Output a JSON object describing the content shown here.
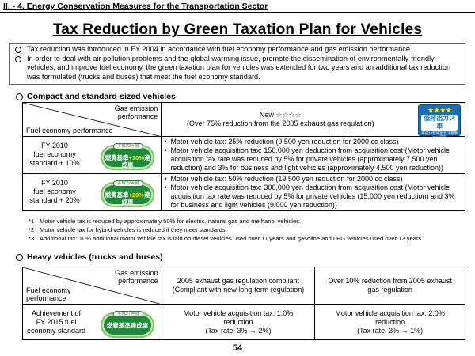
{
  "section_header": "II. - 4. Energy Conservation Measures for the Transportation Sector",
  "title": "Tax Reduction by Green Taxation Plan for Vehicles",
  "intro": [
    "Tax reduction was introduced in FY 2004 in accordance with fuel economy performance and gas emission performance.",
    "In order to deal with air pollution problems and the global warming issue, promote the dissemination of environmentally-friendly vehicles, and improve fuel economy, the green taxation plan for vehicles was extended for two years and an additional tax reduction was formulated (trucks and buses) that meet the fuel economy standard."
  ],
  "compact": {
    "heading": "Compact and standard-sized vehicles",
    "corner_top": "Gas emission\nperformance",
    "corner_bottom": "Fuel economy performance",
    "column_header": "New ☆☆☆☆\n(Over 75% reduction from the 2005 exhaust gas regulation)",
    "stars_badge": {
      "stars": "★★★★",
      "kanji": "低排出ガス車",
      "small": "平成17年排出ガス基準75%低減"
    },
    "rows": [
      {
        "label": "FY 2010\nfuel economy\nstandard + 10%",
        "badge_top": "平成22年度",
        "badge_text": "燃費基準",
        "badge_pct": "+10%",
        "badge_suffix": "達成車",
        "bullets": [
          "Motor vehicle tax: 25% reduction (9,500 yen reduction for 2000 cc class)",
          "Motor vehicle acquisition tax: 150,000 yen deduction from acquisition cost (Motor vehicle acquisition tax rate was reduced by 5% for private vehicles (approximately 7,500 yen reduction) and 3% for business and light vehicles (approximately 4,500 yen reduction))"
        ]
      },
      {
        "label": "FY 2010\nfuel economy\nstandard + 20%",
        "badge_top": "平成22年度",
        "badge_text": "燃費基準",
        "badge_pct": "+20%",
        "badge_suffix": "達成車",
        "bullets": [
          "Motor vehicle tax: 50% reduction (19,500 yen reduction for 2000 cc class)",
          "Motor vehicle acquisition tax: 300,000 yen deduction from acquisition cost (Motor vehicle acquisition tax rate was reduced by 5% for private vehicles (15,000 yen reduction) and 3% for business and light vehicles (9,000 yen reduction))"
        ]
      }
    ]
  },
  "notes": [
    {
      "num": "*1",
      "text": "Motor vehicle tax is reduced by approximately 50% for electric, natural gas and methanol vehicles."
    },
    {
      "num": "*2",
      "text": "Motor vehicle tax for hybrid vehicles is reduced if they meet standards."
    },
    {
      "num": "*3",
      "text": "Additional tax: 10% additional motor vehicle tax is laid on diesel vehicles used over 11 years and gasoline and LPG vehicles used over 13 years."
    }
  ],
  "heavy": {
    "heading": "Heavy vehicles (trucks and buses)",
    "corner_top": "Gas emission\nperformance",
    "corner_bottom": "Fuel economy\nperformance",
    "col1_header": "2005 exhaust gas regulation compliant\n(Compliant with new long-term regulation)",
    "col2_header": "Over 10% reduction from 2005 exhaust\ngas regulation",
    "row_label": "Achievement of\nFY 2015 fuel\neconomy standard",
    "badge_top": "平成27年度",
    "badge_text": "燃費基準達成車",
    "col1_value": "Motor vehicle acquisition tax: 1.0%\nreduction\n(Tax rate: 3%  →  2%)",
    "col2_value": "Motor vehicle acquisition tax: 2.0%\nreduction\n(Tax rate: 3%  →  1%)"
  },
  "page_number": "54"
}
